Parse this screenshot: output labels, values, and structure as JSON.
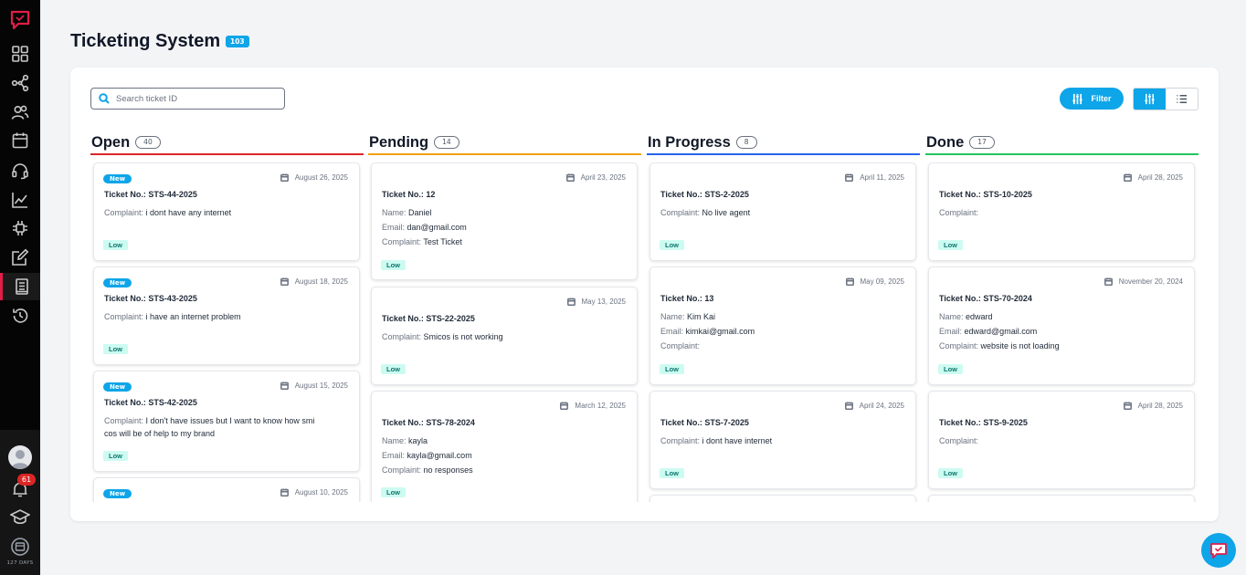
{
  "sidebar": {
    "items": [
      "dashboard-icon",
      "workflow-icon",
      "users-icon",
      "calendar-icon",
      "headset-icon",
      "analytics-icon",
      "ai-icon",
      "edit-icon",
      "tickets-icon",
      "history-icon"
    ],
    "active": "tickets-icon",
    "notification_count": "61",
    "days_label": "127 DAYS"
  },
  "header": {
    "title": "Ticketing System",
    "total_badge": "103"
  },
  "toolbar": {
    "search_placeholder": "Search ticket ID",
    "filter_label": "Filter"
  },
  "colors": {
    "accent": "#0ea5e9",
    "open": "#dc2626",
    "pending": "#f59e0b",
    "in_progress": "#2563eb",
    "done": "#22c55e"
  },
  "labels": {
    "ticket_no": "Ticket No.:",
    "name": "Name:",
    "email": "Email:",
    "complaint": "Complaint:",
    "new": "New",
    "priority": "Low"
  },
  "columns": [
    {
      "title": "Open",
      "count": "40",
      "cards": [
        {
          "is_new": true,
          "date": "August 26, 2025",
          "ticket": "STS-44-2025",
          "complaint": "i dont have any internet",
          "priority": "Low"
        },
        {
          "is_new": true,
          "date": "August 18, 2025",
          "ticket": "STS-43-2025",
          "complaint": "i have an internet problem",
          "priority": "Low"
        },
        {
          "is_new": true,
          "date": "August 15, 2025",
          "ticket": "STS-42-2025",
          "complaint": "I don't have issues but I want to know how smi",
          "complaint_2": "cos will be of help to my brand",
          "priority": "Low"
        },
        {
          "is_new": true,
          "date": "August 10, 2025"
        }
      ]
    },
    {
      "title": "Pending",
      "count": "14",
      "cards": [
        {
          "date": "April 23, 2025",
          "ticket": "12",
          "name": "Daniel",
          "email": "dan@gmail.com",
          "complaint": "Test Ticket",
          "priority": "Low"
        },
        {
          "date": "May 13, 2025",
          "ticket": "STS-22-2025",
          "complaint": "Smicos is not working",
          "priority": "Low"
        },
        {
          "date": "March 12, 2025",
          "ticket": "STS-78-2024",
          "name": "kayla",
          "email": "kayla@gmail.com",
          "complaint": "no responses",
          "priority": "Low"
        }
      ]
    },
    {
      "title": "In Progress",
      "count": "8",
      "cards": [
        {
          "date": "April 11, 2025",
          "ticket": "STS-2-2025",
          "complaint": "No live agent",
          "priority": "Low"
        },
        {
          "date": "May 09, 2025",
          "ticket": "13",
          "name": "Kim Kai",
          "email": "kimkai@gmail.com",
          "complaint": "",
          "priority": "Low"
        },
        {
          "date": "April 24, 2025",
          "ticket": "STS-7-2025",
          "complaint": "i dont have internet",
          "priority": "Low"
        }
      ]
    },
    {
      "title": "Done",
      "count": "17",
      "cards": [
        {
          "date": "April 28, 2025",
          "ticket": "STS-10-2025",
          "complaint": "",
          "priority": "Low"
        },
        {
          "date": "November 20, 2024",
          "ticket": "STS-70-2024",
          "name": "edward",
          "email": "edward@gmail.com",
          "complaint": "website is not loading",
          "priority": "Low"
        },
        {
          "date": "April 28, 2025",
          "ticket": "STS-9-2025",
          "complaint": "",
          "priority": "Low"
        }
      ]
    }
  ]
}
